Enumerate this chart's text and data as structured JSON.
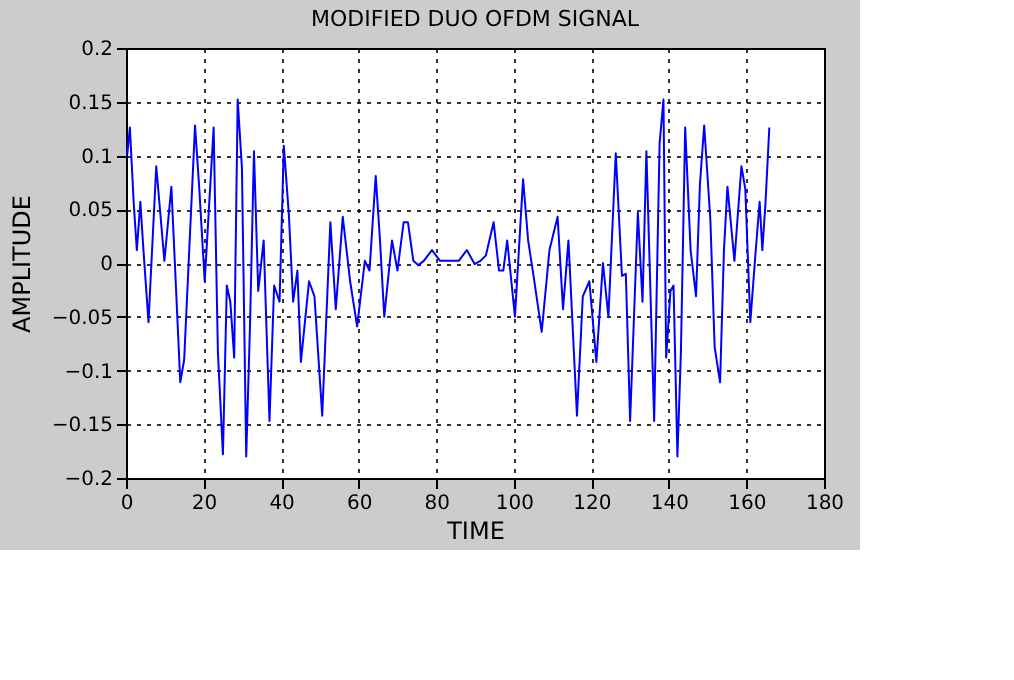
{
  "chart_data": {
    "type": "line",
    "title": "MODIFIED DUO OFDM SIGNAL",
    "xlabel": "TIME",
    "ylabel": "AMPLITUDE",
    "x": [
      0.3,
      1,
      2,
      2.8,
      3.7,
      4.5,
      5.8,
      7.8,
      9.9,
      11.7,
      14,
      15,
      17.8,
      18.9,
      20.3,
      22.6,
      23.7,
      25,
      26,
      26.9,
      27.9,
      28.8,
      29.9,
      31,
      32,
      33,
      34.1,
      35.5,
      37,
      38.2,
      39.6,
      40.7,
      42,
      43.1,
      44.2,
      45.1,
      47.2,
      48.6,
      50.6,
      52.7,
      54.1,
      55.9,
      57.8,
      59.6,
      61.6,
      62.8,
      64.4,
      65.5,
      66.6,
      68.6,
      70,
      71.6,
      72.7,
      74.1,
      75.4,
      76.8,
      78.9,
      81,
      83.7,
      85.8,
      87.9,
      89.9,
      91.4,
      92.8,
      94.8,
      96.2,
      97.3,
      98.3,
      100.3,
      102.4,
      103.7,
      105.1,
      107.2,
      109.2,
      111.3,
      112.7,
      114.1,
      116.3,
      117.8,
      119.5,
      121.3,
      123,
      124.4,
      126.3,
      127.9,
      128.9,
      130,
      132,
      133.2,
      134.2,
      136.2,
      137.6,
      138.6,
      139.3,
      140.4,
      141.2,
      142.2,
      143.1,
      144.2,
      145.6,
      147,
      148,
      149.1,
      150.7,
      151.8,
      153.2,
      154.2,
      155.1,
      156.9,
      158.7,
      159.7,
      161,
      162.4,
      163.4,
      164.1,
      164.9,
      165.9
    ],
    "series": [
      {
        "color": "#0000ff",
        "values": [
          0.1,
          0.126,
          0.055,
          0.012,
          0.057,
          0.012,
          -0.055,
          0.09,
          0.002,
          0.071,
          -0.111,
          -0.09,
          0.128,
          0.069,
          -0.017,
          0.126,
          -0.083,
          -0.178,
          -0.021,
          -0.036,
          -0.088,
          0.152,
          0.088,
          -0.18,
          -0.055,
          0.104,
          -0.026,
          0.021,
          -0.147,
          -0.021,
          -0.036,
          0.109,
          0.045,
          -0.036,
          -0.007,
          -0.092,
          -0.017,
          -0.031,
          -0.142,
          0.038,
          -0.043,
          0.043,
          -0.017,
          -0.059,
          0.002,
          -0.007,
          0.081,
          0.021,
          -0.05,
          0.021,
          -0.007,
          0.038,
          0.038,
          0.002,
          -0.002,
          0.002,
          0.012,
          0.002,
          0.002,
          0.002,
          0.012,
          -0.001,
          0.002,
          0.007,
          0.038,
          -0.007,
          -0.007,
          0.021,
          -0.05,
          0.078,
          0.021,
          -0.012,
          -0.064,
          0.012,
          0.043,
          -0.043,
          0.021,
          -0.142,
          -0.031,
          -0.017,
          -0.092,
          0,
          -0.05,
          0.102,
          -0.012,
          -0.01,
          -0.147,
          0.047,
          -0.036,
          0.104,
          -0.147,
          0.111,
          0.152,
          -0.088,
          -0.026,
          -0.021,
          -0.18,
          -0.083,
          0.126,
          0.012,
          -0.031,
          0.073,
          0.128,
          0.04,
          -0.078,
          -0.111,
          0.012,
          0.071,
          0.002,
          0.09,
          0.069,
          -0.055,
          0.012,
          0.057,
          0.012,
          0.055,
          0.126
        ]
      }
    ],
    "xlim": [
      0,
      180
    ],
    "xticks": [
      0,
      20,
      40,
      60,
      80,
      100,
      120,
      140,
      160,
      180
    ],
    "ylim": [
      -0.2,
      0.2
    ],
    "yticks": [
      -0.2,
      -0.15,
      -0.1,
      -0.05,
      0,
      0.05,
      0.1,
      0.15,
      0.2
    ],
    "grid": true,
    "line_style": "solid"
  }
}
